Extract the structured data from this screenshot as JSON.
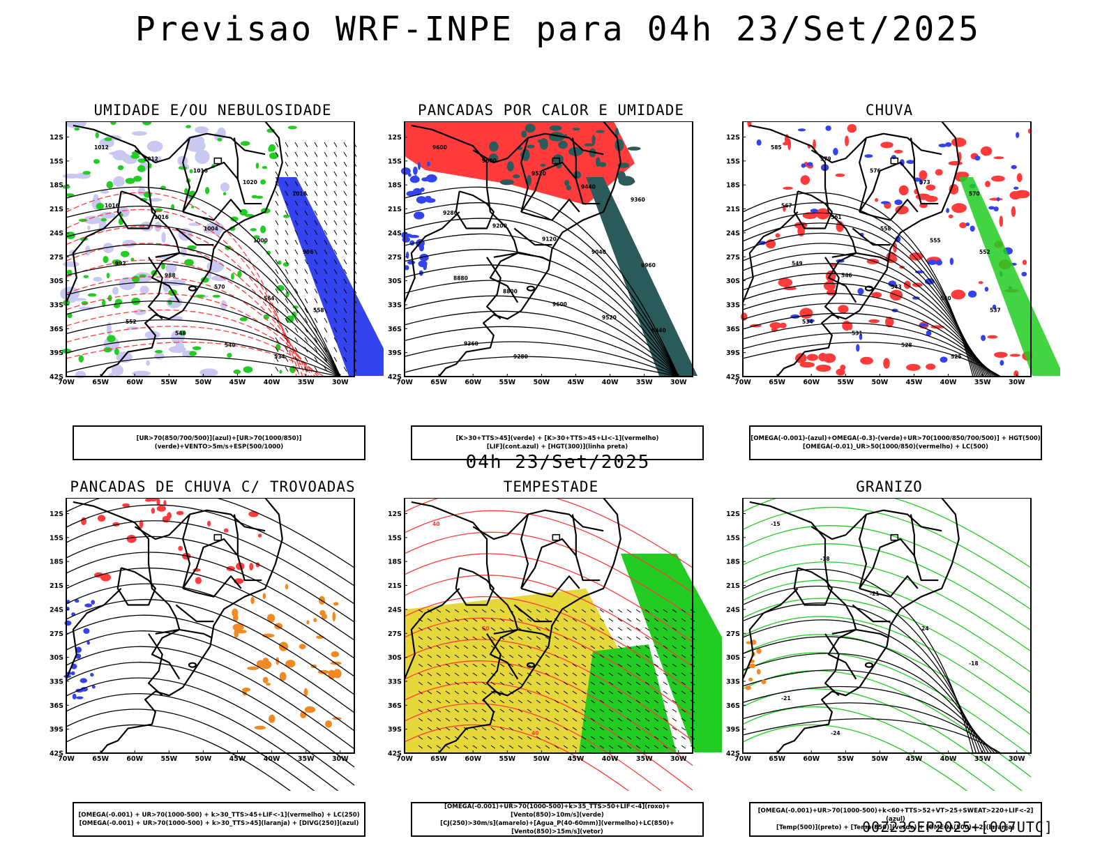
{
  "header": {
    "title": "Previsao WRF-INPE  para 04h 23/Set/2025"
  },
  "mid_label": "04h 23/Set/2025",
  "footer": "00Z23SEP2025+[007UTC]",
  "axes": {
    "lat_labels": [
      "12S",
      "15S",
      "18S",
      "21S",
      "24S",
      "27S",
      "30S",
      "33S",
      "36S",
      "39S",
      "42S"
    ],
    "lon_labels": [
      "70W",
      "65W",
      "60W",
      "55W",
      "50W",
      "45W",
      "40W",
      "35W",
      "30W"
    ]
  },
  "colors": {
    "green": "#22cc22",
    "blue": "#3344ee",
    "lavender": "#c8c8f0",
    "red": "#ff3b3b",
    "darkteal": "#2a5a5a",
    "orange": "#f08a24",
    "yellow": "#e6d83a",
    "black": "#000000"
  },
  "panels": [
    {
      "title": "UMIDADE E/OU NEBULOSIDADE",
      "legend": [
        "[UR>70(850/700/500)](azul)+[UR>70(1000/850)](verde)+VENTO>5m/s+ESP(500/1000)"
      ],
      "contour_labels": [
        "1012",
        "1012",
        "1016",
        "1020",
        "1016",
        "1016",
        "1016",
        "1004",
        "1000",
        "996",
        "992",
        "988",
        "570",
        "564",
        "558",
        "552",
        "546",
        "540",
        "534"
      ]
    },
    {
      "title": "PANCADAS POR CALOR E UMIDADE",
      "legend": [
        "[K>30+TTS>45](verde)  +  [K>30+TTS>45+LI<-1](vermelho)",
        "[LIF](cont.azul)  +  [HGT(300)](linha preta)"
      ],
      "contour_labels": [
        "9600",
        "9600",
        "9520",
        "9440",
        "9360",
        "9280",
        "9200",
        "9120",
        "9040",
        "8960",
        "8880",
        "8800",
        "9600",
        "9520",
        "9440",
        "9360",
        "9280"
      ]
    },
    {
      "title": "CHUVA",
      "legend": [
        "[OMEGA(-0.001)-(azul)+OMEGA(-0.3)-(verde)+UR>70(1000/850/700/500)]  +  HGT(500)",
        "[OMEGA(-0.01)_UR>50(1000/850)(vermelho)  +  LC(500)"
      ],
      "contour_labels": [
        "585",
        "579",
        "576",
        "573",
        "570",
        "567",
        "561",
        "558",
        "555",
        "552",
        "549",
        "546",
        "543",
        "540",
        "537",
        "534",
        "531",
        "528",
        "525"
      ]
    },
    {
      "title": "PANCADAS DE CHUVA C/ TROVOADAS",
      "legend": [
        "[OMEGA(-0.001)  +  UR>70(1000-500)  +  k>30_TTS>45+LIF<-1](vermelho)  +  LC(250)",
        "[OMEGA(-0.001)  +  UR>70(1000-500)  +  k>30_TTS>45](laranja)  +  [DIVG(250)](azul)"
      ],
      "contour_labels": []
    },
    {
      "title": "TEMPESTADE",
      "legend": [
        "[OMEGA(-0.001)+UR>70(1000-500)+k>35_TTS>50+LIF<-4](roxo)+[Vento(850)>10m/s](verde)",
        "[CJ(250)>30m/s](amarelo)+[Agua_P(40-60mm)](vermelho)+LC(850)+[Vento(850)>15m/s](vetor)"
      ],
      "contour_labels": [
        "40",
        "50",
        "40"
      ]
    },
    {
      "title": "GRANIZO",
      "legend": [
        "[OMEGA(-0.001)+UR>70(1000-500)+k<60+TTS>52+VT>25+SWEAT>220+LIF<-2](azul)",
        "[Temp(500)](preto)  +  [Temp(850)](verde)  +  [OMEGA(500)<-2](laranja)"
      ],
      "contour_labels": [
        "-15",
        "-18",
        "-21",
        "-24",
        "-18",
        "-21",
        "-24"
      ]
    }
  ]
}
